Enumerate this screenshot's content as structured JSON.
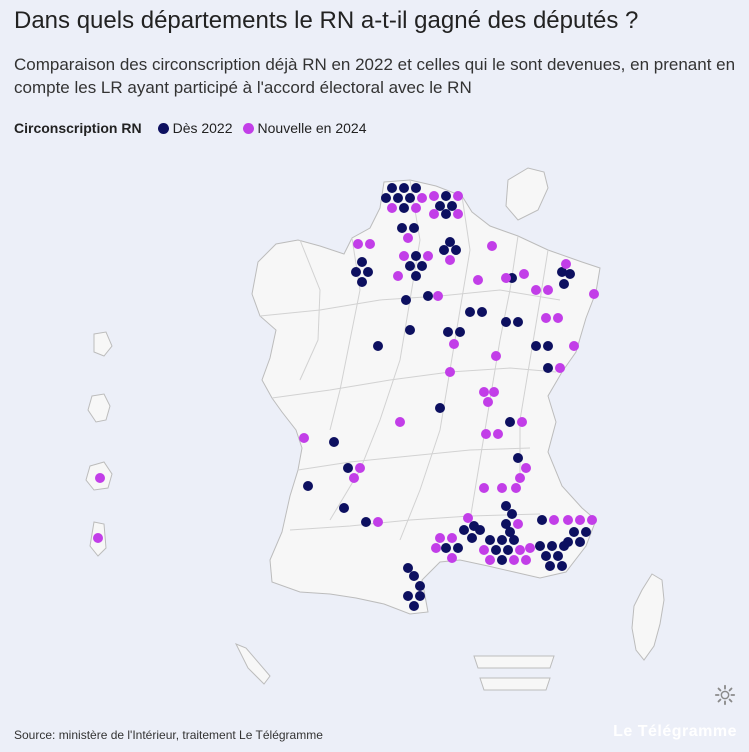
{
  "title": "Dans quels départements le RN a-t-il gagné des députés ?",
  "subtitle": "Comparaison des circonscription déjà RN en 2022 et celles qui le sont devenues, en prenant en compte les LR ayant participé à l'accord électoral avec le RN",
  "legend": {
    "title": "Circonscription RN",
    "items": [
      {
        "label": "Dès 2022",
        "color": "#0d1060"
      },
      {
        "label": "Nouvelle en 2024",
        "color": "#c23ee8"
      }
    ]
  },
  "colors": {
    "background": "#eceff8",
    "land": "#f7f7f7",
    "border": "#bcbcbc",
    "old": "#0d1060",
    "new": "#c23ee8"
  },
  "source": "Source: ministère de l'Intérieur, traitement Le Télégramme",
  "brand": "Le Télégramme",
  "icons": {
    "settings": "gear-icon"
  }
}
